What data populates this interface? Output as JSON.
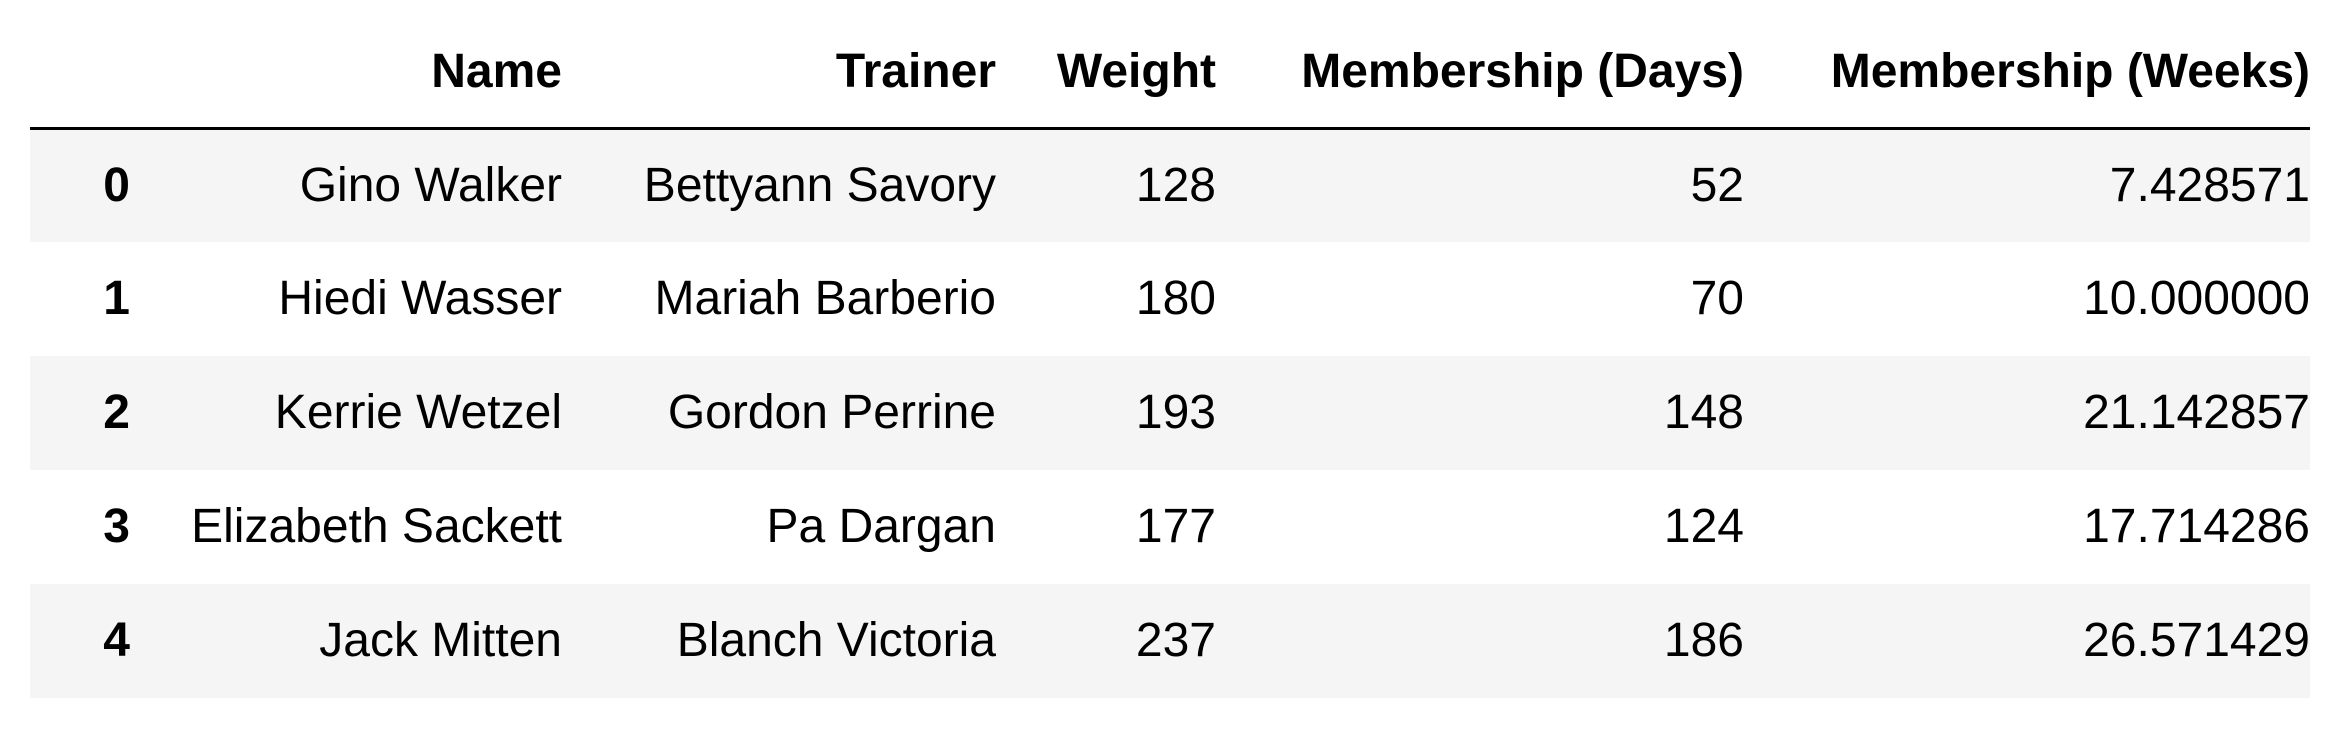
{
  "table": {
    "columns": {
      "index": "",
      "name": "Name",
      "trainer": "Trainer",
      "weight": "Weight",
      "days": "Membership (Days)",
      "weeks": "Membership (Weeks)"
    },
    "rows": [
      {
        "index": "0",
        "name": "Gino Walker",
        "trainer": "Bettyann Savory",
        "weight": "128",
        "days": "52",
        "weeks": "7.428571"
      },
      {
        "index": "1",
        "name": "Hiedi Wasser",
        "trainer": "Mariah Barberio",
        "weight": "180",
        "days": "70",
        "weeks": "10.000000"
      },
      {
        "index": "2",
        "name": "Kerrie Wetzel",
        "trainer": "Gordon Perrine",
        "weight": "193",
        "days": "148",
        "weeks": "21.142857"
      },
      {
        "index": "3",
        "name": "Elizabeth Sackett",
        "trainer": "Pa Dargan",
        "weight": "177",
        "days": "124",
        "weeks": "17.714286"
      },
      {
        "index": "4",
        "name": "Jack Mitten",
        "trainer": "Blanch Victoria",
        "weight": "237",
        "days": "186",
        "weeks": "26.571429"
      }
    ]
  }
}
